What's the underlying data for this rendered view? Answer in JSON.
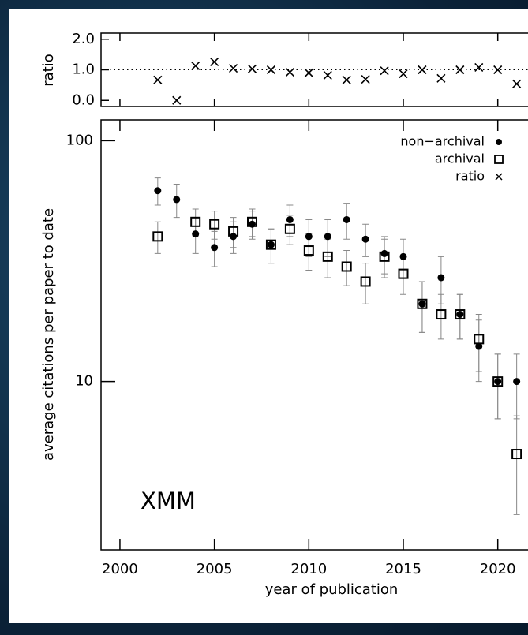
{
  "chart_data": [
    {
      "type": "scatter",
      "ylabel": "ratio",
      "ylim": [
        -0.2,
        2.2
      ],
      "yticks": [
        {
          "value": 2,
          "label": "2.0"
        },
        {
          "value": 1,
          "label": "1.0"
        },
        {
          "value": 0,
          "label": "0.0"
        }
      ],
      "hline": 1,
      "x": [
        2002,
        2003,
        2004,
        2005,
        2006,
        2007,
        2008,
        2009,
        2010,
        2011,
        2012,
        2013,
        2014,
        2015,
        2016,
        2017,
        2018,
        2019,
        2020,
        2021
      ],
      "series": [
        {
          "name": "ratio",
          "color": "#000000",
          "marker": "x",
          "values": [
            0.67,
            0.0,
            1.13,
            1.26,
            1.05,
            1.03,
            1.0,
            0.92,
            0.9,
            0.82,
            0.67,
            0.69,
            0.97,
            0.87,
            1.0,
            0.72,
            1.0,
            1.08,
            1.0,
            0.54
          ]
        }
      ]
    },
    {
      "type": "scatter",
      "ylabel": "average citations per paper to date",
      "xlabel": "year of publication",
      "annotation": "XMM",
      "log_y": true,
      "legend": "upper right",
      "xlim": [
        1999,
        2021.6
      ],
      "xticks": [
        2000,
        2005,
        2010,
        2015,
        2020
      ],
      "ylim": [
        2.0,
        122
      ],
      "yticks": [
        10,
        100
      ],
      "x": [
        2002,
        2003,
        2004,
        2005,
        2006,
        2007,
        2008,
        2009,
        2010,
        2011,
        2012,
        2013,
        2014,
        2015,
        2016,
        2017,
        2018,
        2019,
        2020,
        2021
      ],
      "series": [
        {
          "name": "non−archival",
          "color": "#000000",
          "marker": "circle",
          "values": [
            62,
            57,
            41,
            36,
            40,
            45,
            37,
            47,
            40,
            40,
            47,
            39,
            34,
            33,
            21,
            27,
            19,
            14,
            10,
            10
          ],
          "errors": [
            8,
            9,
            7,
            6,
            6,
            6,
            6,
            7,
            7,
            7,
            8,
            6,
            6,
            6,
            5,
            6,
            4,
            4,
            3,
            3
          ]
        },
        {
          "name": "archival",
          "color": "#000000",
          "marker": "square",
          "values": [
            40,
            null,
            46,
            45,
            42,
            46,
            37,
            43,
            35,
            33,
            30,
            26,
            33,
            28,
            21,
            19,
            19,
            15,
            10,
            5.0
          ],
          "errors": [
            6,
            null,
            6,
            6,
            6,
            6,
            6,
            6,
            6,
            6,
            5,
            5,
            6,
            5,
            5,
            4,
            4,
            4,
            3,
            2.2
          ]
        }
      ]
    }
  ]
}
